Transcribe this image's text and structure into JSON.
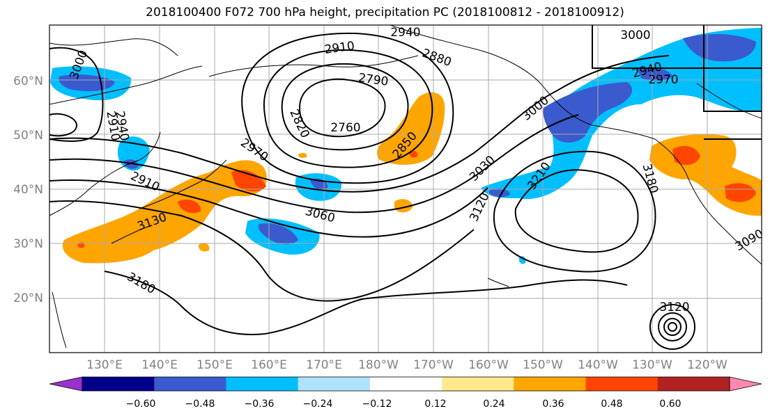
{
  "title": "2018100400 F072 700 hPa height, precipitation PC (2018100812 - 2018100912)",
  "lat_labels": [
    "60°N",
    "50°N",
    "40°N",
    "30°N",
    "20°N"
  ],
  "lon_labels": [
    "130°E",
    "140°E",
    "150°E",
    "160°E",
    "170°E",
    "180°W",
    "170°W",
    "160°W",
    "150°W",
    "140°W",
    "130°W",
    "120°W"
  ],
  "contour_labels": [
    "2940",
    "3000",
    "2910",
    "2880",
    "3000",
    "2790",
    "2940",
    "2970",
    "3000",
    "2910",
    "2940",
    "2820",
    "2760",
    "2850",
    "3000",
    "2970",
    "3030",
    "2910",
    "3210",
    "3180",
    "3120",
    "3060",
    "3130",
    "3120",
    "3180",
    "3090"
  ],
  "colorbar": {
    "tick_labels": [
      "−0.60",
      "−0.48",
      "−0.36",
      "−0.24",
      "−0.12",
      "0.12",
      "0.24",
      "0.36",
      "0.48",
      "0.60"
    ],
    "colors": [
      "#9932cc",
      "#00008b",
      "#3a5acd",
      "#00bfff",
      "#b0e2ff",
      "#ffffff",
      "#ffe98a",
      "#ffa500",
      "#ff4500",
      "#b22222",
      "#ff88b0"
    ]
  },
  "colors": {
    "neg_strong": "#3a5acd",
    "neg_mid": "#00bfff",
    "neg_light": "#b0e2ff",
    "pos_light": "#ffe98a",
    "pos_mid": "#ffa500",
    "pos_strong": "#ff4500",
    "contour": "#000000",
    "grid": "#aaaaaa",
    "axis_label": "#808080"
  }
}
